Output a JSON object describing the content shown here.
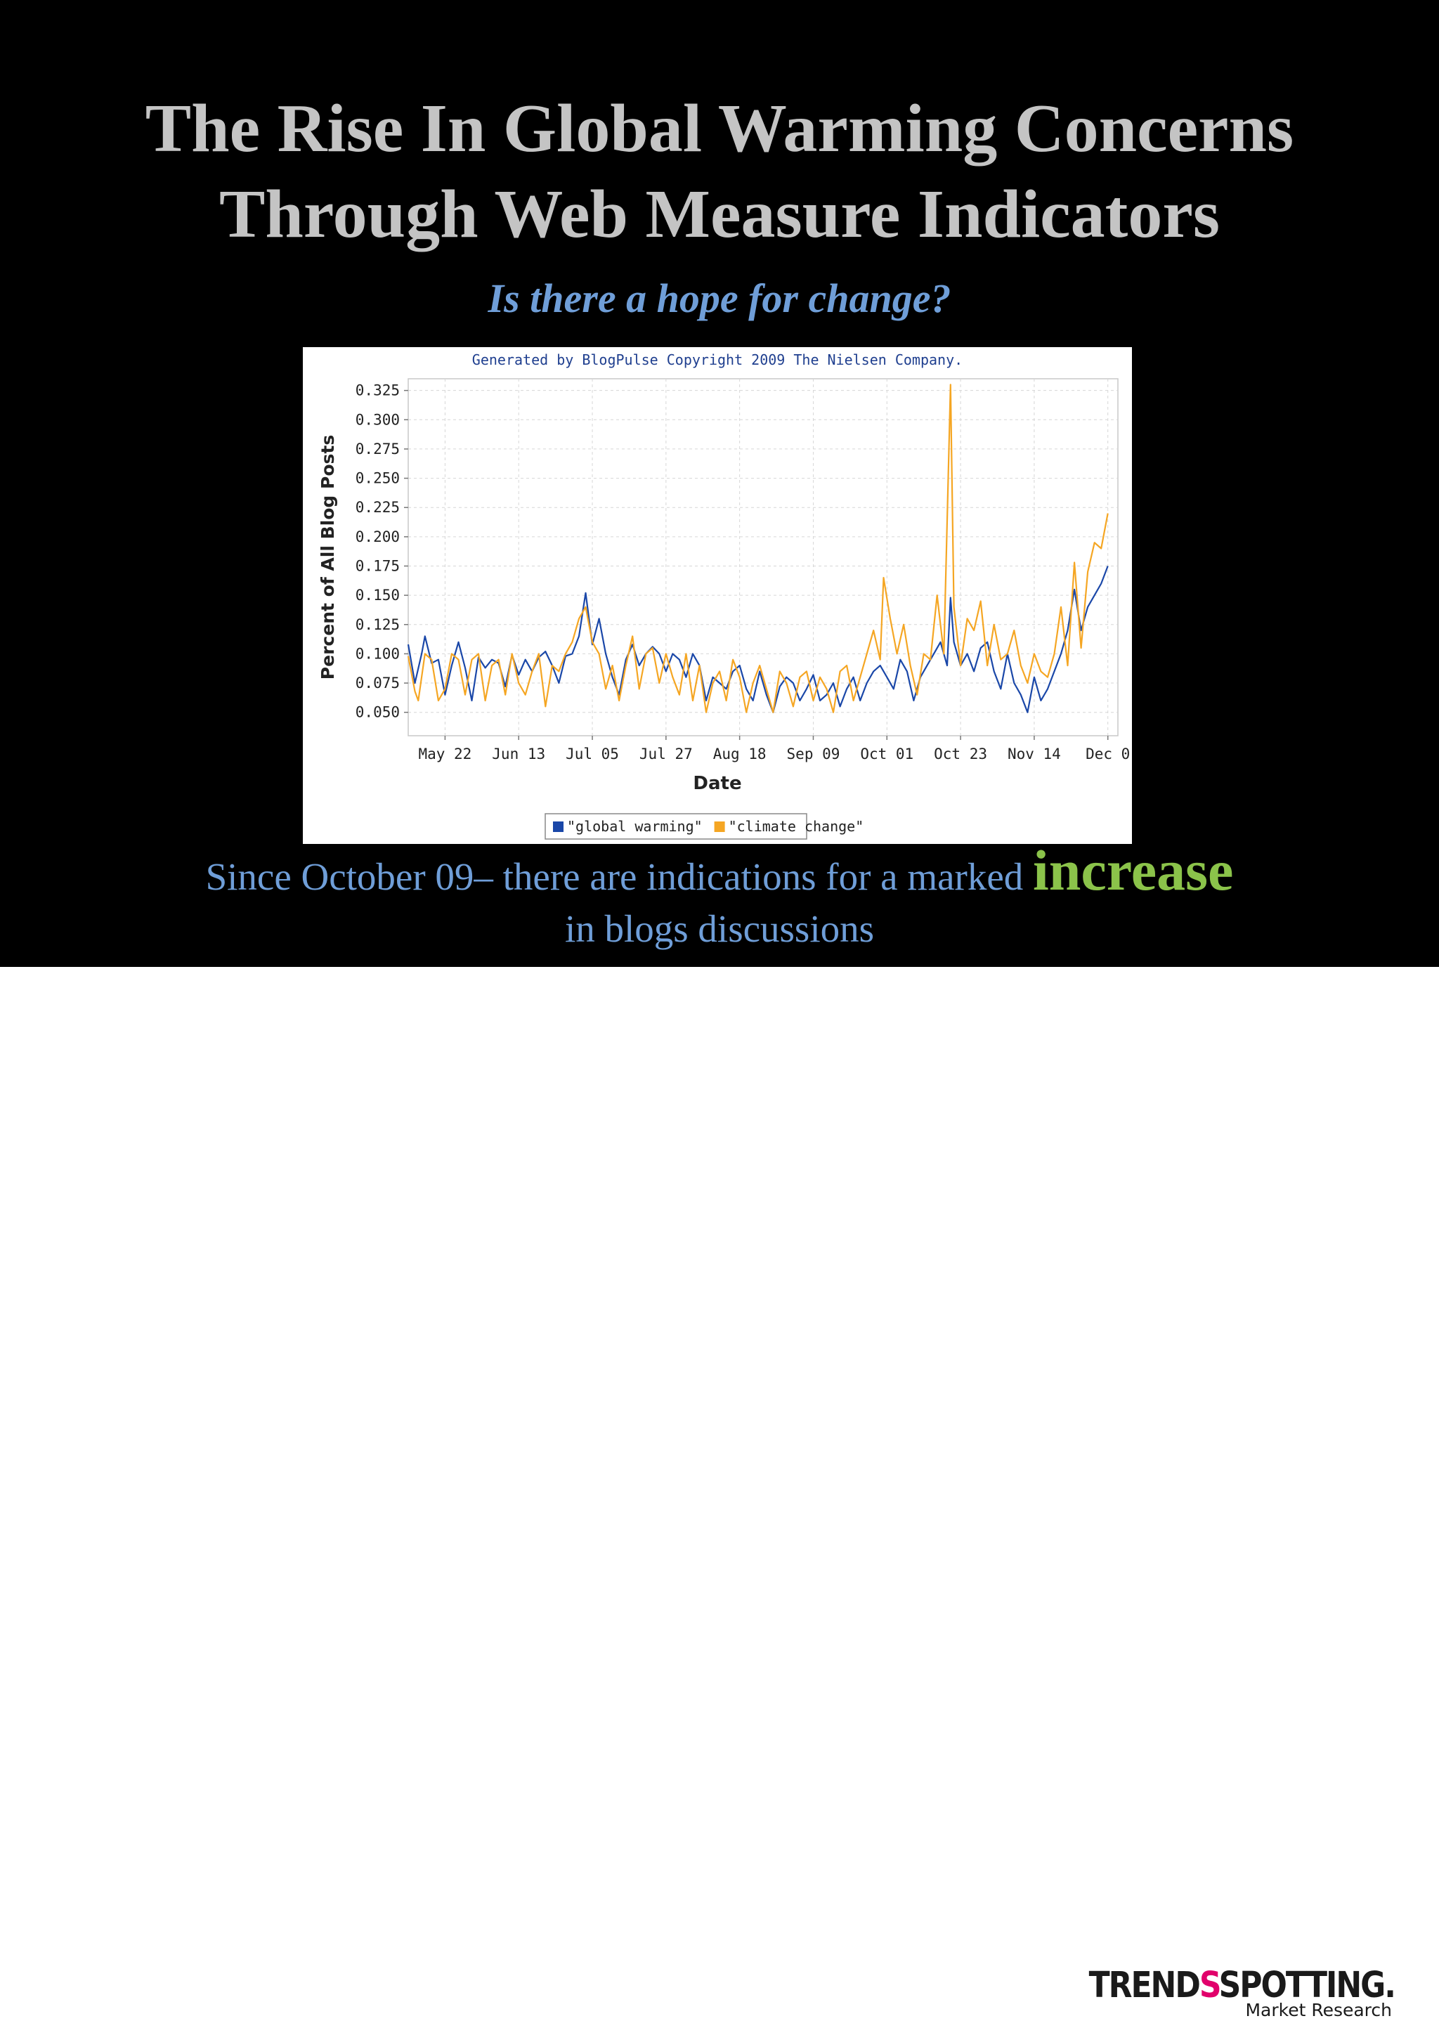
{
  "slide": {
    "title_line1": "The Rise In Global Warming Concerns",
    "title_line2": "Through Web Measure Indicators",
    "subtitle": "Is there a hope for change?",
    "caption_part1": "Since October 09– there are indications for a marked ",
    "caption_highlight": "increase",
    "caption_part2": "in blogs discussions",
    "colors": {
      "background": "#000000",
      "title": "#c4c4c4",
      "accent_blue": "#6f9ed8",
      "highlight_green": "#8bc34a"
    }
  },
  "logo": {
    "word_part1": "TREND",
    "word_mark": "S",
    "word_part2": "SPOTTING.",
    "tagline": "Market Research"
  },
  "chart_data": {
    "type": "line",
    "title": "Generated by BlogPulse Copyright 2009 The Nielsen Company.",
    "xlabel": "Date",
    "ylabel": "Percent of All Blog Posts",
    "x_ticks": [
      "May 22",
      "Jun 13",
      "Jul 05",
      "Jul 27",
      "Aug 18",
      "Sep 09",
      "Oct 01",
      "Oct 23",
      "Nov 14",
      "Dec 0"
    ],
    "y_ticks": [
      "0.050",
      "0.075",
      "0.100",
      "0.125",
      "0.150",
      "0.175",
      "0.200",
      "0.225",
      "0.250",
      "0.275",
      "0.300",
      "0.325"
    ],
    "x_start": "2009-05-11",
    "x_end": "2009-12-09",
    "ylim": [
      0.03,
      0.335
    ],
    "grid": true,
    "legend_position": "bottom",
    "series": [
      {
        "name": "\"global warming\"",
        "color": "#1a47a8",
        "points": [
          [
            "2009-05-11",
            0.108
          ],
          [
            "2009-05-13",
            0.075
          ],
          [
            "2009-05-15",
            0.1
          ],
          [
            "2009-05-16",
            0.115
          ],
          [
            "2009-05-18",
            0.092
          ],
          [
            "2009-05-20",
            0.095
          ],
          [
            "2009-05-22",
            0.065
          ],
          [
            "2009-05-24",
            0.09
          ],
          [
            "2009-05-26",
            0.11
          ],
          [
            "2009-05-28",
            0.088
          ],
          [
            "2009-05-30",
            0.06
          ],
          [
            "2009-06-01",
            0.097
          ],
          [
            "2009-06-03",
            0.088
          ],
          [
            "2009-06-05",
            0.095
          ],
          [
            "2009-06-07",
            0.092
          ],
          [
            "2009-06-09",
            0.072
          ],
          [
            "2009-06-11",
            0.099
          ],
          [
            "2009-06-13",
            0.082
          ],
          [
            "2009-06-15",
            0.095
          ],
          [
            "2009-06-17",
            0.085
          ],
          [
            "2009-06-19",
            0.097
          ],
          [
            "2009-06-21",
            0.102
          ],
          [
            "2009-06-23",
            0.09
          ],
          [
            "2009-06-25",
            0.075
          ],
          [
            "2009-06-27",
            0.098
          ],
          [
            "2009-06-29",
            0.1
          ],
          [
            "2009-07-01",
            0.115
          ],
          [
            "2009-07-03",
            0.152
          ],
          [
            "2009-07-05",
            0.108
          ],
          [
            "2009-07-07",
            0.13
          ],
          [
            "2009-07-09",
            0.1
          ],
          [
            "2009-07-11",
            0.08
          ],
          [
            "2009-07-13",
            0.065
          ],
          [
            "2009-07-15",
            0.095
          ],
          [
            "2009-07-17",
            0.108
          ],
          [
            "2009-07-19",
            0.09
          ],
          [
            "2009-07-21",
            0.1
          ],
          [
            "2009-07-23",
            0.106
          ],
          [
            "2009-07-25",
            0.1
          ],
          [
            "2009-07-27",
            0.085
          ],
          [
            "2009-07-29",
            0.1
          ],
          [
            "2009-07-31",
            0.095
          ],
          [
            "2009-08-02",
            0.08
          ],
          [
            "2009-08-04",
            0.1
          ],
          [
            "2009-08-06",
            0.09
          ],
          [
            "2009-08-08",
            0.06
          ],
          [
            "2009-08-10",
            0.08
          ],
          [
            "2009-08-12",
            0.075
          ],
          [
            "2009-08-14",
            0.07
          ],
          [
            "2009-08-16",
            0.085
          ],
          [
            "2009-08-18",
            0.09
          ],
          [
            "2009-08-20",
            0.07
          ],
          [
            "2009-08-22",
            0.06
          ],
          [
            "2009-08-24",
            0.085
          ],
          [
            "2009-08-26",
            0.065
          ],
          [
            "2009-08-28",
            0.05
          ],
          [
            "2009-08-30",
            0.072
          ],
          [
            "2009-09-01",
            0.08
          ],
          [
            "2009-09-03",
            0.075
          ],
          [
            "2009-09-05",
            0.06
          ],
          [
            "2009-09-07",
            0.07
          ],
          [
            "2009-09-09",
            0.082
          ],
          [
            "2009-09-11",
            0.06
          ],
          [
            "2009-09-13",
            0.065
          ],
          [
            "2009-09-15",
            0.075
          ],
          [
            "2009-09-17",
            0.055
          ],
          [
            "2009-09-19",
            0.07
          ],
          [
            "2009-09-21",
            0.08
          ],
          [
            "2009-09-23",
            0.06
          ],
          [
            "2009-09-25",
            0.075
          ],
          [
            "2009-09-27",
            0.085
          ],
          [
            "2009-09-29",
            0.09
          ],
          [
            "2009-10-01",
            0.08
          ],
          [
            "2009-10-03",
            0.07
          ],
          [
            "2009-10-05",
            0.095
          ],
          [
            "2009-10-07",
            0.085
          ],
          [
            "2009-10-09",
            0.06
          ],
          [
            "2009-10-11",
            0.08
          ],
          [
            "2009-10-13",
            0.09
          ],
          [
            "2009-10-15",
            0.1
          ],
          [
            "2009-10-17",
            0.11
          ],
          [
            "2009-10-19",
            0.09
          ],
          [
            "2009-10-20",
            0.148
          ],
          [
            "2009-10-21",
            0.11
          ],
          [
            "2009-10-23",
            0.09
          ],
          [
            "2009-10-25",
            0.1
          ],
          [
            "2009-10-27",
            0.085
          ],
          [
            "2009-10-29",
            0.105
          ],
          [
            "2009-10-31",
            0.11
          ],
          [
            "2009-11-02",
            0.085
          ],
          [
            "2009-11-04",
            0.07
          ],
          [
            "2009-11-06",
            0.1
          ],
          [
            "2009-11-08",
            0.075
          ],
          [
            "2009-11-10",
            0.065
          ],
          [
            "2009-11-12",
            0.05
          ],
          [
            "2009-11-14",
            0.08
          ],
          [
            "2009-11-16",
            0.06
          ],
          [
            "2009-11-18",
            0.07
          ],
          [
            "2009-11-20",
            0.085
          ],
          [
            "2009-11-22",
            0.1
          ],
          [
            "2009-11-24",
            0.12
          ],
          [
            "2009-11-26",
            0.155
          ],
          [
            "2009-11-28",
            0.12
          ],
          [
            "2009-11-30",
            0.14
          ],
          [
            "2009-12-02",
            0.15
          ],
          [
            "2009-12-04",
            0.16
          ],
          [
            "2009-12-06",
            0.175
          ]
        ]
      },
      {
        "name": "\"climate change\"",
        "color": "#f5a623",
        "points": [
          [
            "2009-05-11",
            0.098
          ],
          [
            "2009-05-13",
            0.068
          ],
          [
            "2009-05-14",
            0.06
          ],
          [
            "2009-05-16",
            0.1
          ],
          [
            "2009-05-18",
            0.095
          ],
          [
            "2009-05-20",
            0.06
          ],
          [
            "2009-05-22",
            0.07
          ],
          [
            "2009-05-24",
            0.1
          ],
          [
            "2009-05-26",
            0.095
          ],
          [
            "2009-05-28",
            0.065
          ],
          [
            "2009-05-30",
            0.095
          ],
          [
            "2009-06-01",
            0.1
          ],
          [
            "2009-06-03",
            0.06
          ],
          [
            "2009-06-05",
            0.09
          ],
          [
            "2009-06-07",
            0.095
          ],
          [
            "2009-06-09",
            0.065
          ],
          [
            "2009-06-11",
            0.1
          ],
          [
            "2009-06-13",
            0.075
          ],
          [
            "2009-06-15",
            0.065
          ],
          [
            "2009-06-17",
            0.085
          ],
          [
            "2009-06-19",
            0.1
          ],
          [
            "2009-06-21",
            0.055
          ],
          [
            "2009-06-23",
            0.09
          ],
          [
            "2009-06-25",
            0.085
          ],
          [
            "2009-06-27",
            0.1
          ],
          [
            "2009-06-29",
            0.11
          ],
          [
            "2009-07-01",
            0.13
          ],
          [
            "2009-07-03",
            0.14
          ],
          [
            "2009-07-05",
            0.11
          ],
          [
            "2009-07-07",
            0.1
          ],
          [
            "2009-07-09",
            0.07
          ],
          [
            "2009-07-11",
            0.09
          ],
          [
            "2009-07-13",
            0.06
          ],
          [
            "2009-07-15",
            0.09
          ],
          [
            "2009-07-17",
            0.115
          ],
          [
            "2009-07-19",
            0.07
          ],
          [
            "2009-07-21",
            0.1
          ],
          [
            "2009-07-23",
            0.105
          ],
          [
            "2009-07-25",
            0.075
          ],
          [
            "2009-07-27",
            0.1
          ],
          [
            "2009-07-29",
            0.08
          ],
          [
            "2009-07-31",
            0.065
          ],
          [
            "2009-08-02",
            0.1
          ],
          [
            "2009-08-04",
            0.06
          ],
          [
            "2009-08-06",
            0.09
          ],
          [
            "2009-08-08",
            0.05
          ],
          [
            "2009-08-10",
            0.075
          ],
          [
            "2009-08-12",
            0.085
          ],
          [
            "2009-08-14",
            0.06
          ],
          [
            "2009-08-16",
            0.095
          ],
          [
            "2009-08-18",
            0.08
          ],
          [
            "2009-08-20",
            0.05
          ],
          [
            "2009-08-22",
            0.075
          ],
          [
            "2009-08-24",
            0.09
          ],
          [
            "2009-08-26",
            0.07
          ],
          [
            "2009-08-28",
            0.05
          ],
          [
            "2009-08-30",
            0.085
          ],
          [
            "2009-09-01",
            0.075
          ],
          [
            "2009-09-03",
            0.055
          ],
          [
            "2009-09-05",
            0.08
          ],
          [
            "2009-09-07",
            0.085
          ],
          [
            "2009-09-09",
            0.06
          ],
          [
            "2009-09-11",
            0.08
          ],
          [
            "2009-09-13",
            0.07
          ],
          [
            "2009-09-15",
            0.05
          ],
          [
            "2009-09-17",
            0.085
          ],
          [
            "2009-09-19",
            0.09
          ],
          [
            "2009-09-21",
            0.06
          ],
          [
            "2009-09-23",
            0.08
          ],
          [
            "2009-09-25",
            0.1
          ],
          [
            "2009-09-27",
            0.12
          ],
          [
            "2009-09-29",
            0.095
          ],
          [
            "2009-09-30",
            0.165
          ],
          [
            "2009-10-02",
            0.13
          ],
          [
            "2009-10-04",
            0.1
          ],
          [
            "2009-10-06",
            0.125
          ],
          [
            "2009-10-08",
            0.09
          ],
          [
            "2009-10-10",
            0.065
          ],
          [
            "2009-10-12",
            0.1
          ],
          [
            "2009-10-14",
            0.095
          ],
          [
            "2009-10-16",
            0.15
          ],
          [
            "2009-10-18",
            0.1
          ],
          [
            "2009-10-20",
            0.33
          ],
          [
            "2009-10-21",
            0.14
          ],
          [
            "2009-10-23",
            0.09
          ],
          [
            "2009-10-25",
            0.13
          ],
          [
            "2009-10-27",
            0.12
          ],
          [
            "2009-10-29",
            0.145
          ],
          [
            "2009-10-31",
            0.09
          ],
          [
            "2009-11-02",
            0.125
          ],
          [
            "2009-11-04",
            0.095
          ],
          [
            "2009-11-06",
            0.1
          ],
          [
            "2009-11-08",
            0.12
          ],
          [
            "2009-11-10",
            0.09
          ],
          [
            "2009-11-12",
            0.075
          ],
          [
            "2009-11-14",
            0.1
          ],
          [
            "2009-11-16",
            0.085
          ],
          [
            "2009-11-18",
            0.08
          ],
          [
            "2009-11-20",
            0.1
          ],
          [
            "2009-11-22",
            0.14
          ],
          [
            "2009-11-24",
            0.09
          ],
          [
            "2009-11-26",
            0.178
          ],
          [
            "2009-11-28",
            0.105
          ],
          [
            "2009-11-30",
            0.17
          ],
          [
            "2009-12-02",
            0.195
          ],
          [
            "2009-12-04",
            0.19
          ],
          [
            "2009-12-06",
            0.22
          ]
        ]
      }
    ]
  }
}
